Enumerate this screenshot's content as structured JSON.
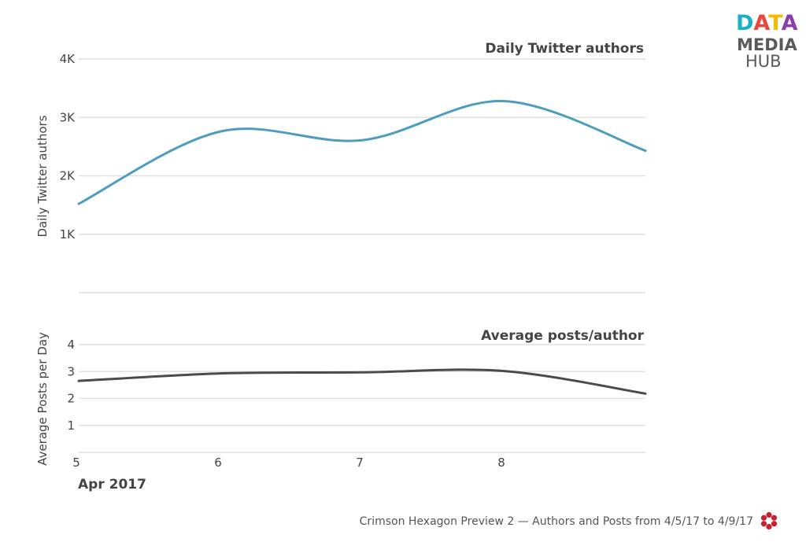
{
  "brand": {
    "logo_text": [
      "DATA",
      "MEDIA",
      "HUB"
    ],
    "logo_letter_colors": [
      "#1bb0c8",
      "#e8483f",
      "#f6b900",
      "#8a3ea8"
    ]
  },
  "chart_data": [
    {
      "type": "line",
      "title": "Daily Twitter authors",
      "ylabel": "Daily Twitter authors",
      "yticks": [
        1000,
        2000,
        3000,
        4000
      ],
      "ytick_labels": [
        "1K",
        "2K",
        "3K",
        "4K"
      ],
      "ylim": [
        0,
        4000
      ],
      "xlim": [
        5,
        9
      ],
      "grid": true,
      "series": [
        {
          "color": "#4e9dbf",
          "x": [
            5,
            6,
            7,
            8,
            9
          ],
          "values": [
            1520,
            2760,
            2610,
            3280,
            2430
          ]
        }
      ]
    },
    {
      "type": "line",
      "title": "Average posts/author",
      "ylabel": "Average Posts per Day",
      "yticks": [
        1,
        2,
        3,
        4
      ],
      "ytick_labels": [
        "1",
        "2",
        "3",
        "4"
      ],
      "ylim": [
        0,
        4
      ],
      "xlim": [
        5,
        9
      ],
      "grid": true,
      "series": [
        {
          "color": "#4b4b4b",
          "x": [
            5,
            6,
            7,
            8,
            9
          ],
          "values": [
            2.65,
            2.93,
            2.97,
            3.02,
            2.18
          ]
        }
      ]
    }
  ],
  "x_axis": {
    "ticks": [
      5,
      6,
      7,
      8
    ],
    "tick_labels": [
      "5",
      "6",
      "7",
      "8"
    ],
    "month_label": "Apr 2017"
  },
  "caption": "Crimson Hexagon Preview 2 — Authors and Posts from 4/5/17 to 4/9/17",
  "footer_icon": "crimson-hexagon-logo-icon",
  "footer_icon_color": "#c8202f"
}
